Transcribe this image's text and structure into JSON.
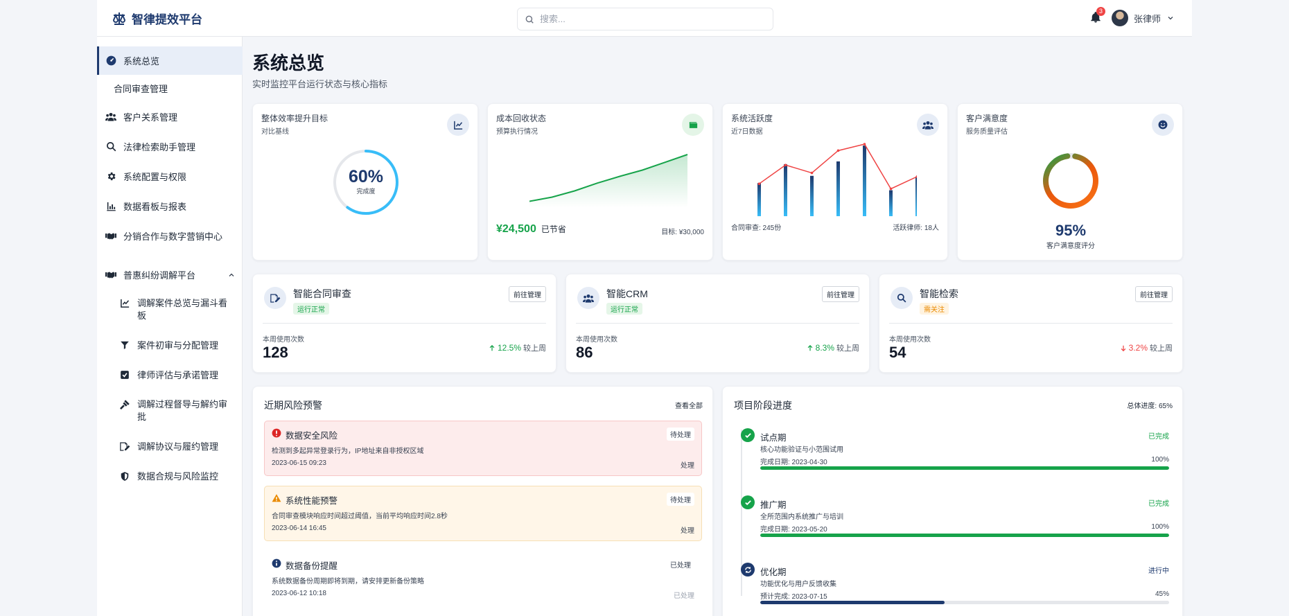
{
  "app": {
    "name": "智律提效平台"
  },
  "search": {
    "placeholder": "搜索..."
  },
  "notifications": {
    "count": "3"
  },
  "user": {
    "name": "张律师"
  },
  "sidebar": {
    "items": [
      {
        "label": "系统总览",
        "icon": "dashboard-icon"
      },
      {
        "label": "合同审查管理",
        "icon": ""
      },
      {
        "label": "客户关系管理",
        "icon": "users-icon"
      },
      {
        "label": "法律检索助手管理",
        "icon": "search-icon"
      },
      {
        "label": "系统配置与权限",
        "icon": "gear-icon"
      },
      {
        "label": "数据看板与报表",
        "icon": "bar-chart-icon"
      },
      {
        "label": "分销合作与数字营销中心",
        "icon": "handshake-icon"
      }
    ],
    "group": {
      "label": "普惠纠纷调解平台",
      "icon": "handshake-icon",
      "children": [
        {
          "label": "调解案件总览与漏斗看板",
          "icon": "line-chart-icon"
        },
        {
          "label": "案件初审与分配管理",
          "icon": "filter-icon"
        },
        {
          "label": "律师评估与承诺管理",
          "icon": "check-square-icon"
        },
        {
          "label": "调解过程督导与解约审批",
          "icon": "gavel-icon"
        },
        {
          "label": "调解协议与履约管理",
          "icon": "signature-icon"
        },
        {
          "label": "数据合规与风险监控",
          "icon": "shield-icon"
        }
      ]
    }
  },
  "page": {
    "title": "系统总览",
    "subtitle": "实时监控平台运行状态与核心指标"
  },
  "stats": {
    "efficiency": {
      "title": "整体效率提升目标",
      "subtitle": "对比基线",
      "percent": 60,
      "percent_text": "60%",
      "caption": "完成度"
    },
    "cost": {
      "title": "成本回收状态",
      "subtitle": "预算执行情况",
      "amount": "¥24,500",
      "amount_label": "已节省",
      "target": "目标: ¥30,000",
      "trend": [
        10,
        18,
        30,
        45,
        58,
        70,
        85,
        100
      ]
    },
    "activity": {
      "title": "系统活跃度",
      "subtitle": "近7日数据",
      "contracts_label": "合同审查: 245份",
      "lawyers_label": "活跃律师: 18人",
      "bars": [
        0.46,
        0.72,
        0.56,
        0.76,
        0.98,
        0.36,
        0.55
      ],
      "line": [
        0.45,
        0.71,
        0.6,
        0.91,
        1.0,
        0.38,
        0.55
      ]
    },
    "satisfaction": {
      "title": "客户满意度",
      "subtitle": "服务质量评估",
      "percent": 95,
      "percent_text": "95%",
      "caption": "客户满意度评分"
    }
  },
  "modules": [
    {
      "name": "智能合同审查",
      "status": "运行正常",
      "status_kind": "ok",
      "button": "前往管理",
      "usage_label": "本周使用次数",
      "usage": "128",
      "trend": "12.5%",
      "trend_dir": "up",
      "compare": "较上周",
      "icon": "contract-icon"
    },
    {
      "name": "智能CRM",
      "status": "运行正常",
      "status_kind": "ok",
      "button": "前往管理",
      "usage_label": "本周使用次数",
      "usage": "86",
      "trend": "8.3%",
      "trend_dir": "up",
      "compare": "较上周",
      "icon": "users-icon"
    },
    {
      "name": "智能检索",
      "status": "需关注",
      "status_kind": "warn",
      "button": "前往管理",
      "usage_label": "本周使用次数",
      "usage": "54",
      "trend": "3.2%",
      "trend_dir": "down",
      "compare": "较上周",
      "icon": "search-icon"
    }
  ],
  "risk": {
    "title": "近期风险预警",
    "view_all": "查看全部",
    "alerts": [
      {
        "title": "数据安全风险",
        "desc": "检测到多起异常登录行为，IP地址来自非授权区域",
        "time": "2023-06-15 09:23",
        "status": "待处理",
        "action": "处理",
        "level": "danger",
        "icon": "alert-circle-icon"
      },
      {
        "title": "系统性能预警",
        "desc": "合同审查模块响应时间超过阈值，当前平均响应时间2.8秒",
        "time": "2023-06-14 16:45",
        "status": "待处理",
        "action": "处理",
        "level": "warning",
        "icon": "warning-triangle-icon"
      },
      {
        "title": "数据备份提醒",
        "desc": "系统数据备份周期即将到期，请安排更新备份策略",
        "time": "2023-06-12 10:18",
        "status": "已处理",
        "action": "已处理",
        "level": "info",
        "icon": "info-icon"
      }
    ]
  },
  "project": {
    "title": "项目阶段进度",
    "overall": "总体进度: 65%",
    "stages": [
      {
        "name": "试点期",
        "state": "已完成",
        "desc": "核心功能验证与小范围试用",
        "date": "完成日期: 2023-04-30",
        "percent": 100,
        "percent_text": "100%",
        "status": "done"
      },
      {
        "name": "推广期",
        "state": "已完成",
        "desc": "全所范围内系统推广与培训",
        "date": "完成日期: 2023-05-20",
        "percent": 100,
        "percent_text": "100%",
        "status": "done"
      },
      {
        "name": "优化期",
        "state": "进行中",
        "desc": "功能优化与用户反馈收集",
        "date": "预计完成: 2023-07-15",
        "percent": 45,
        "percent_text": "45%",
        "status": "progress"
      }
    ]
  },
  "colors": {
    "brand": "#1e3a6e",
    "green": "#16a34a",
    "red": "#ef4444",
    "sky": "#38bdf8",
    "amber": "#ea8a00"
  }
}
